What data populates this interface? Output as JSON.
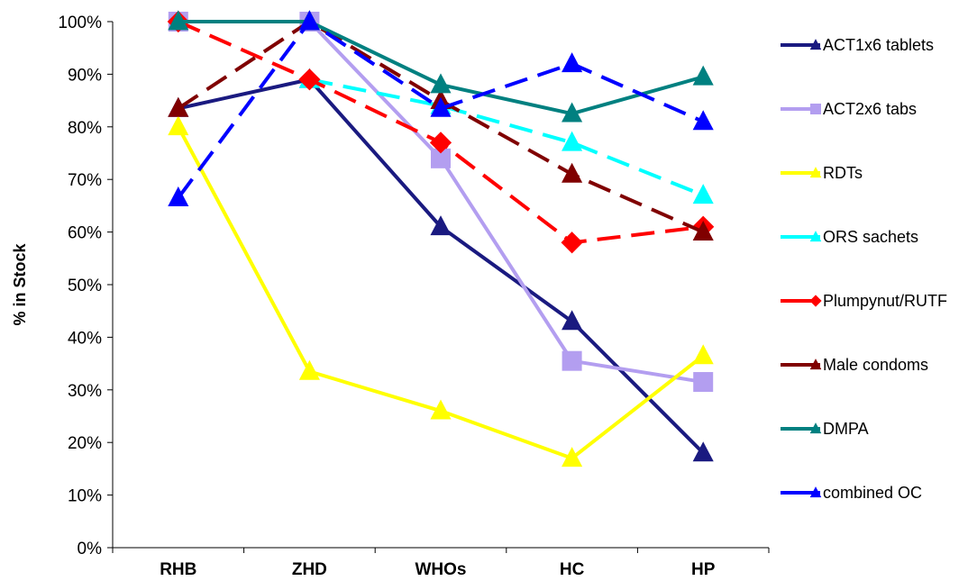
{
  "chart_data": {
    "type": "line",
    "title": "",
    "xlabel": "",
    "ylabel": "% in Stock",
    "ylim": [
      0,
      100
    ],
    "y_ticks": [
      "0%",
      "10%",
      "20%",
      "30%",
      "40%",
      "50%",
      "60%",
      "70%",
      "80%",
      "90%",
      "100%"
    ],
    "categories": [
      "RHB",
      "ZHD",
      "WHOs",
      "HC",
      "HP"
    ],
    "legend_position": "right",
    "grid": false,
    "series": [
      {
        "name": "ACT1x6 tablets",
        "values": [
          83.5,
          89,
          61,
          43,
          18
        ],
        "color": "#1a1a80",
        "marker": "triangle",
        "dash": false
      },
      {
        "name": "ACT2x6 tabs",
        "values": [
          100,
          100,
          74,
          35.5,
          31.5
        ],
        "color": "#b39ef0",
        "marker": "square",
        "dash": false
      },
      {
        "name": "RDTs",
        "values": [
          80,
          33.5,
          26,
          17,
          36.5
        ],
        "color": "#ffff00",
        "marker": "triangle",
        "dash": false
      },
      {
        "name": "ORS sachets",
        "values": [
          null,
          89,
          84,
          77,
          67
        ],
        "color": "#00ffff",
        "marker": "triangle",
        "dash": true
      },
      {
        "name": "Plumpynut/RUTF",
        "values": [
          100,
          89,
          77,
          58,
          61
        ],
        "color": "#ff0000",
        "marker": "diamond",
        "dash": true
      },
      {
        "name": "Male condoms",
        "values": [
          83.5,
          100,
          85,
          71,
          60
        ],
        "color": "#800000",
        "marker": "triangle",
        "dash": true
      },
      {
        "name": "DMPA",
        "values": [
          100,
          100,
          88,
          82.5,
          89.5
        ],
        "color": "#008080",
        "marker": "triangle",
        "dash": false
      },
      {
        "name": "combined OC",
        "values": [
          66.5,
          100,
          83.5,
          92,
          81
        ],
        "color": "#0000ff",
        "marker": "triangle",
        "dash": true
      }
    ]
  }
}
